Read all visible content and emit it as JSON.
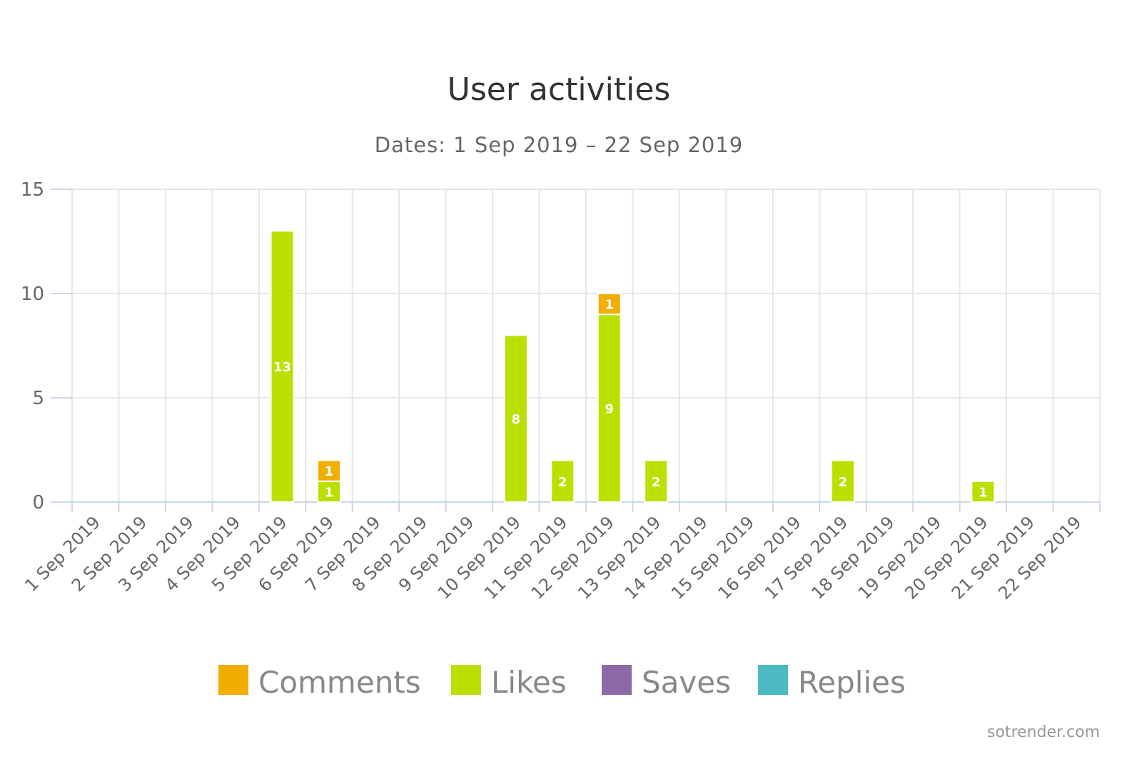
{
  "credit": "sotrender.com",
  "colors": {
    "Comments": "#F0AE00",
    "Likes": "#BDDF00",
    "Saves": "#8E69A8",
    "Replies": "#4BBAC2",
    "grid": "#E6E6E6",
    "axis": "#CCD6EB"
  },
  "chart_data": {
    "type": "bar",
    "stacked": true,
    "title": "User activities",
    "subtitle": "Dates: 1 Sep 2019 – 22 Sep 2019",
    "xlabel": "",
    "ylabel": "",
    "ylim": [
      0,
      15
    ],
    "yticks": [
      0,
      5,
      10,
      15
    ],
    "grid": true,
    "legend_position": "bottom",
    "categories": [
      "1 Sep 2019",
      "2 Sep 2019",
      "3 Sep 2019",
      "4 Sep 2019",
      "5 Sep 2019",
      "6 Sep 2019",
      "7 Sep 2019",
      "8 Sep 2019",
      "9 Sep 2019",
      "10 Sep 2019",
      "11 Sep 2019",
      "12 Sep 2019",
      "13 Sep 2019",
      "14 Sep 2019",
      "15 Sep 2019",
      "16 Sep 2019",
      "17 Sep 2019",
      "18 Sep 2019",
      "19 Sep 2019",
      "20 Sep 2019",
      "21 Sep 2019",
      "22 Sep 2019"
    ],
    "series": [
      {
        "name": "Comments",
        "values": [
          0,
          0,
          0,
          0,
          0,
          1,
          0,
          0,
          0,
          0,
          0,
          1,
          0,
          0,
          0,
          0,
          0,
          0,
          0,
          0,
          0,
          0
        ]
      },
      {
        "name": "Likes",
        "values": [
          0,
          0,
          0,
          0,
          13,
          1,
          0,
          0,
          0,
          8,
          2,
          9,
          2,
          0,
          0,
          0,
          2,
          0,
          0,
          1,
          0,
          0
        ]
      },
      {
        "name": "Saves",
        "values": [
          0,
          0,
          0,
          0,
          0,
          0,
          0,
          0,
          0,
          0,
          0,
          0,
          0,
          0,
          0,
          0,
          0,
          0,
          0,
          0,
          0,
          0
        ]
      },
      {
        "name": "Replies",
        "values": [
          0,
          0,
          0,
          0,
          0,
          0,
          0,
          0,
          0,
          0,
          0,
          0,
          0,
          0,
          0,
          0,
          0,
          0,
          0,
          0,
          0,
          0
        ]
      }
    ]
  }
}
